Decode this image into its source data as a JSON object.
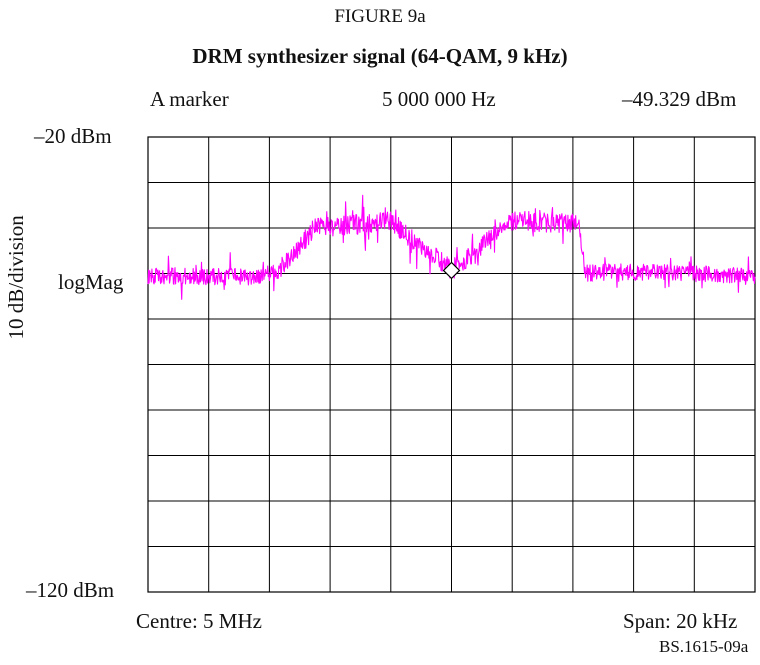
{
  "figure": {
    "label": "FIGURE 9a",
    "title": "DRM synthesizer signal (64-QAM, 9 kHz)",
    "source_id": "BS.1615-09a"
  },
  "marker": {
    "name": "A marker",
    "frequency": "5 000 000 Hz",
    "level": "–49.329 dBm"
  },
  "axis": {
    "y_top": "–20 dBm",
    "y_bottom": "–120 dBm",
    "y_scale": "logMag",
    "y_division": "10 dB/division",
    "centre": "Centre: 5 MHz",
    "span": "Span: 20 kHz"
  },
  "colors": {
    "trace": "#ff00ff",
    "grid": "#000000",
    "marker": "#000000"
  },
  "chart_data": {
    "type": "line",
    "xlim": [
      4990000,
      5010000
    ],
    "ylim": [
      -120,
      -20
    ],
    "grid": true,
    "x_divisions": 10,
    "y_divisions": 10,
    "series": [
      {
        "x": [
          4990000,
          4993500,
          4994300,
          4995500,
          4998000,
          5000000,
          5002000,
          5004200,
          5004400,
          5005300,
          5007500,
          5010000
        ],
        "values": [
          -50.5,
          -50.8,
          -49.5,
          -40.0,
          -38.5,
          -49.3,
          -38.5,
          -39.0,
          -50.0,
          -49.6,
          -49.8,
          -50.7
        ]
      }
    ],
    "marker_point": {
      "x": 5000000,
      "y": -49.329
    }
  }
}
